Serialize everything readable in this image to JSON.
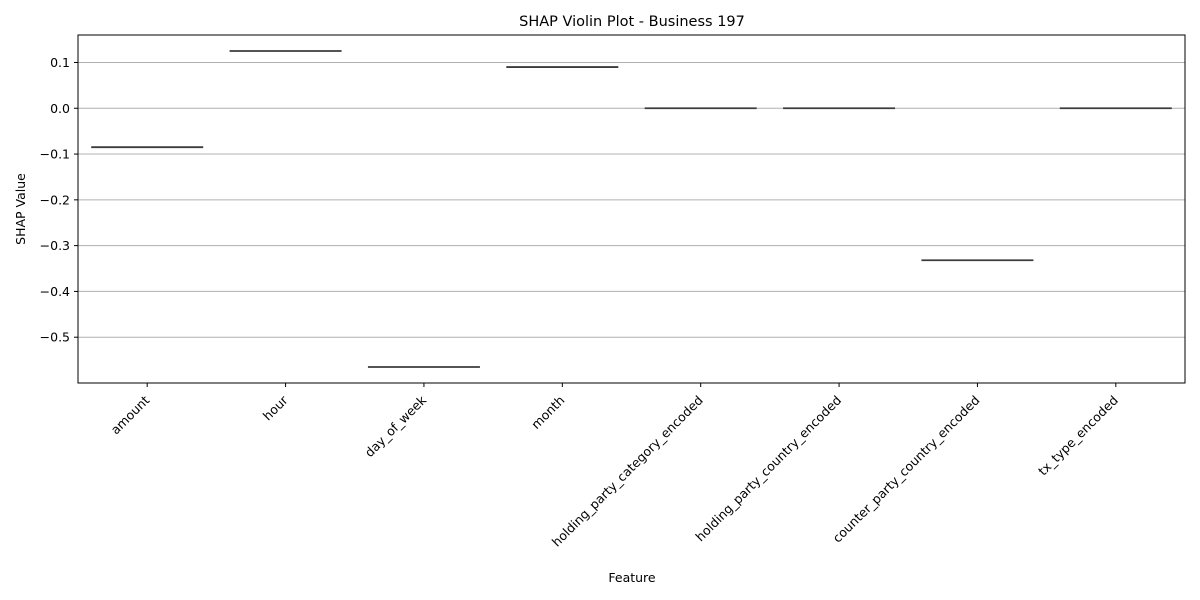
{
  "chart_data": {
    "type": "violin",
    "title": "SHAP Violin Plot - Business 197",
    "xlabel": "Feature",
    "ylabel": "SHAP Value",
    "categories": [
      "amount",
      "hour",
      "day_of_week",
      "month",
      "holding_party_category_encoded",
      "holding_party_country_encoded",
      "counter_party_country_encoded",
      "tx_type_encoded"
    ],
    "values": [
      -0.085,
      0.125,
      -0.565,
      0.09,
      0.0,
      0.0,
      -0.332,
      0.0
    ],
    "ylim": [
      -0.6,
      0.16
    ],
    "yticks": [
      0.1,
      0.0,
      -0.1,
      -0.2,
      -0.3,
      -0.4,
      -0.5
    ],
    "ytick_labels": [
      "0.1",
      "0.0",
      "−0.1",
      "−0.2",
      "−0.3",
      "−0.4",
      "−0.5"
    ],
    "grid": "horizontal",
    "colors": {
      "mark": "#3c3c3c",
      "grid": "#b0b0b0",
      "axis": "#000000"
    }
  }
}
